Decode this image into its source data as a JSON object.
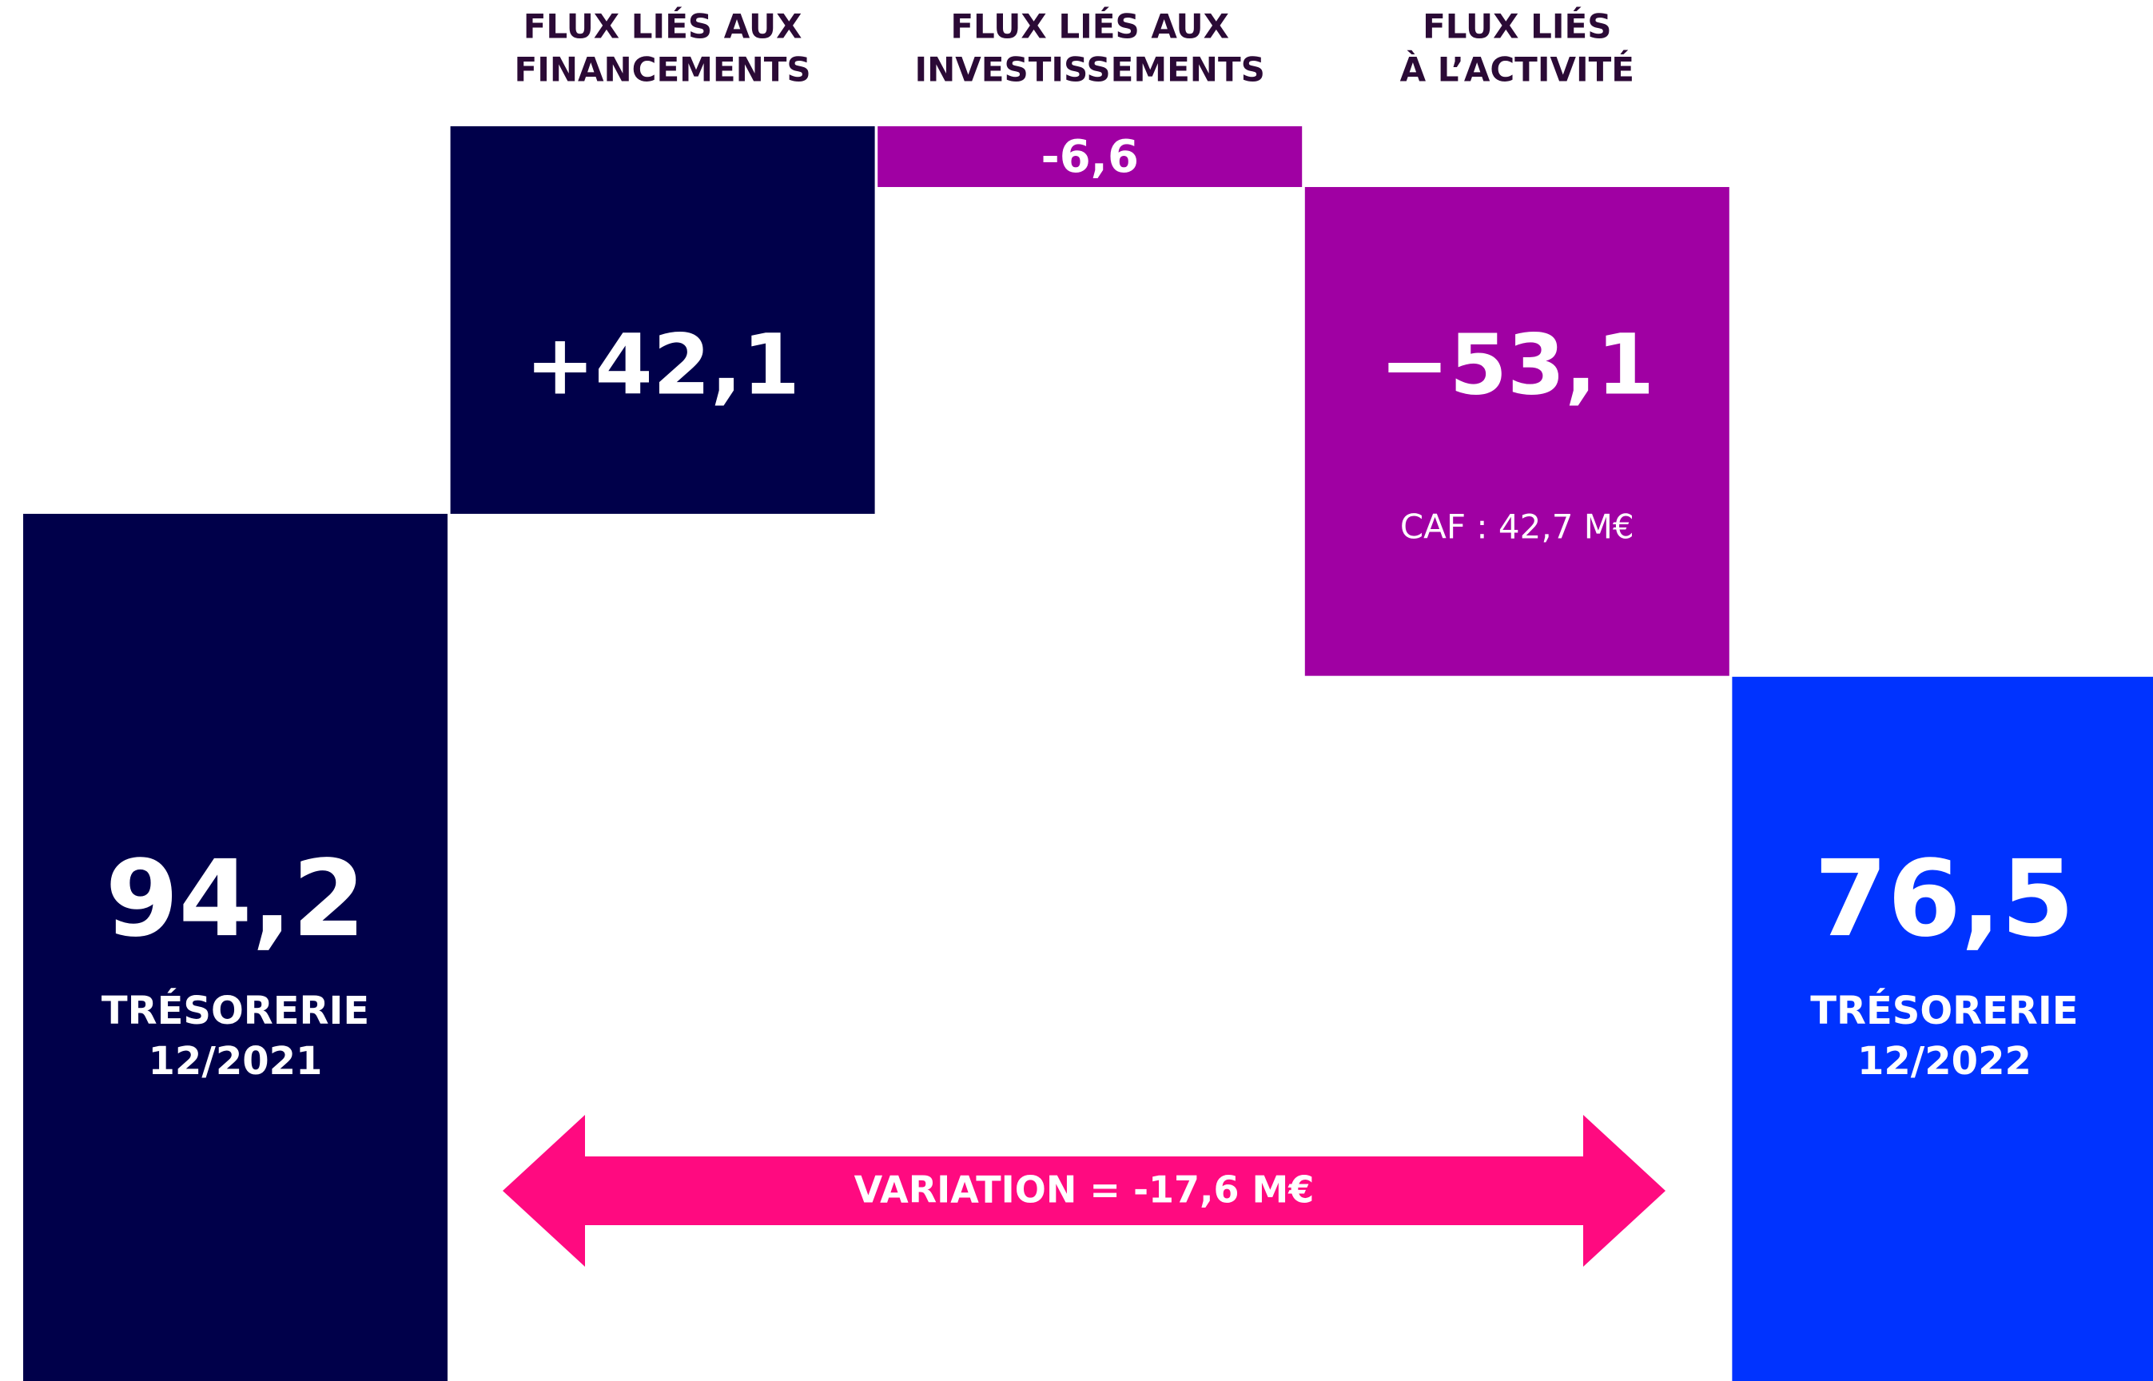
{
  "chart_data": {
    "type": "waterfall",
    "categories": [
      [
        "TRÉSORERIE",
        "12/2021"
      ],
      [
        "FLUX LIÉS AUX",
        "FINANCEMENTS"
      ],
      [
        "FLUX LIÉS AUX",
        "INVESTISSEMENTS"
      ],
      [
        "FLUX LIÉS",
        "À L’ACTIVITÉ"
      ],
      [
        "TRÉSORERIE",
        "12/2022"
      ]
    ],
    "measures": [
      "total",
      "relative",
      "relative",
      "relative",
      "total"
    ],
    "values": [
      94.2,
      42.1,
      -6.6,
      -53.1,
      76.5
    ],
    "value_labels": [
      "94,2",
      "+42,1",
      "-6,6",
      "−53,1",
      "76,5"
    ],
    "colors": [
      "#00004a",
      "#00004a",
      "#a000a3",
      "#a000a3",
      "#0033ff"
    ],
    "ylim": [
      0,
      136.3
    ],
    "annotations": [
      "CAF : 42,7 M€",
      "VARIATION = -17,6 M€"
    ],
    "arrow_color": "#ff0a80"
  }
}
